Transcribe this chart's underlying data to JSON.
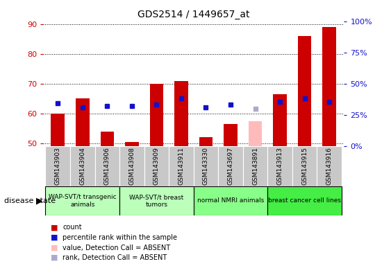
{
  "title": "GDS2514 / 1449657_at",
  "samples": [
    "GSM143903",
    "GSM143904",
    "GSM143906",
    "GSM143908",
    "GSM143909",
    "GSM143911",
    "GSM143330",
    "GSM143697",
    "GSM143891",
    "GSM143913",
    "GSM143915",
    "GSM143916"
  ],
  "count_values": [
    60,
    65,
    54,
    50.5,
    70,
    71,
    52,
    56.5,
    null,
    66.5,
    86,
    89
  ],
  "count_absent": [
    null,
    null,
    null,
    null,
    null,
    null,
    null,
    null,
    57.5,
    null,
    null,
    null
  ],
  "percentile_values": [
    63.5,
    62,
    62.5,
    62.5,
    63,
    65,
    62,
    63,
    null,
    64,
    65,
    64
  ],
  "percentile_absent": [
    null,
    null,
    null,
    null,
    null,
    null,
    null,
    null,
    61.5,
    null,
    null,
    null
  ],
  "group_defs": [
    {
      "label": "WAP-SVT/t transgenic\nanimals",
      "start": 0,
      "end": 3,
      "color": "#bbffbb"
    },
    {
      "label": "WAP-SVT/t breast\ntumors",
      "start": 3,
      "end": 6,
      "color": "#bbffbb"
    },
    {
      "label": "normal NMRI animals",
      "start": 6,
      "end": 9,
      "color": "#88ff88"
    },
    {
      "label": "breast cancer cell lines",
      "start": 9,
      "end": 12,
      "color": "#44ee44"
    }
  ],
  "ylim_left": [
    49,
    91
  ],
  "ylim_right": [
    0,
    100
  ],
  "yticks_left": [
    50,
    60,
    70,
    80,
    90
  ],
  "yticks_right": [
    0,
    25,
    50,
    75,
    100
  ],
  "ytick_labels_right": [
    "0%",
    "25%",
    "50%",
    "75%",
    "100%"
  ],
  "bar_bottom": 49,
  "red_color": "#cc0000",
  "blue_color": "#1111cc",
  "pink_color": "#ffbbbb",
  "light_blue_color": "#aaaacc",
  "background_color": "#ffffff",
  "sample_box_color": "#c8c8c8",
  "legend_items": [
    {
      "color": "#cc0000",
      "label": "count"
    },
    {
      "color": "#1111cc",
      "label": "percentile rank within the sample"
    },
    {
      "color": "#ffbbbb",
      "label": "value, Detection Call = ABSENT"
    },
    {
      "color": "#aaaacc",
      "label": "rank, Detection Call = ABSENT"
    }
  ]
}
